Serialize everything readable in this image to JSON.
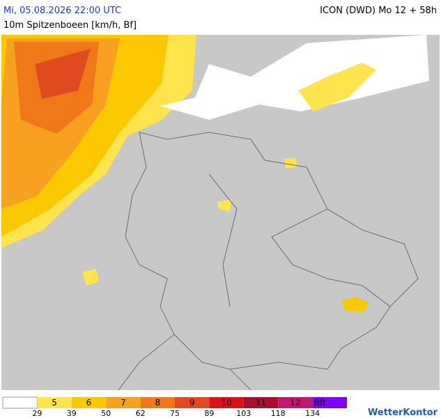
{
  "header": {
    "datetime": "Mi, 05.08.2026 22:00 UTC",
    "model": "ICON (DWD) Mo 12 + 58h",
    "parameter": "10m Spitzenboeen [km/h, Bf]"
  },
  "legend": {
    "bft_labels": [
      "5",
      "6",
      "7",
      "8",
      "9",
      "10",
      "11",
      "12",
      "Bft"
    ],
    "kmh_labels": [
      "29",
      "39",
      "50",
      "62",
      "75",
      "89",
      "103",
      "118",
      "134"
    ]
  },
  "logo": "WetterKontor"
}
